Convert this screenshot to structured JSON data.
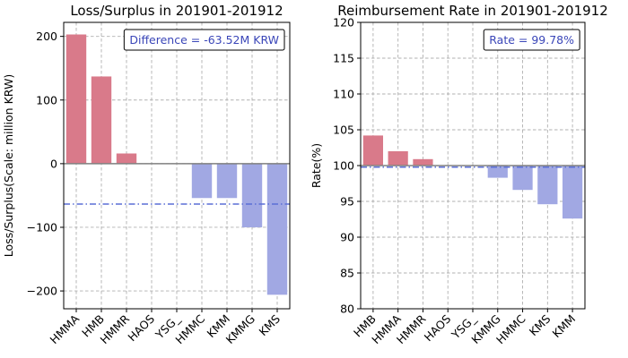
{
  "chart_data": [
    {
      "type": "bar",
      "title": "Loss/Surplus in 201901-201912",
      "ylabel": "Loss/Surplus(Scale: million KRW)",
      "xlabel": "",
      "categories": [
        "HMMA",
        "HMB",
        "HMMR",
        "HAOS",
        "YSG_",
        "HMMC",
        "KMM",
        "KMMG",
        "KMS"
      ],
      "values": [
        203,
        137,
        16,
        0,
        0,
        -54,
        -54,
        -100,
        -206
      ],
      "ylim": [
        -228,
        222
      ],
      "yticks": [
        -200,
        -100,
        0,
        100,
        200
      ],
      "ytick_labels": [
        "−200",
        "−100",
        "0",
        "100",
        "200"
      ],
      "zero_line": 0,
      "reference_line": {
        "value": -63.52,
        "style": "dash-dot"
      },
      "annotation": "Difference = -63.52M KRW",
      "annotation_position": "top-right",
      "grid": true
    },
    {
      "type": "bar",
      "title": "Reimbursement Rate in 201901-201912",
      "ylabel": "Rate(%)",
      "xlabel": "",
      "categories": [
        "HMB",
        "HMMA",
        "HMMR",
        "HAOS",
        "YSG_",
        "KMMG",
        "HMMC",
        "KMS",
        "KMM"
      ],
      "values": [
        104.2,
        102.0,
        100.9,
        100.0,
        100.0,
        98.3,
        96.6,
        94.6,
        92.6
      ],
      "ylim": [
        80,
        120
      ],
      "yticks": [
        80,
        85,
        90,
        95,
        100,
        105,
        110,
        115,
        120
      ],
      "ytick_labels": [
        "80",
        "85",
        "90",
        "95",
        "100",
        "105",
        "110",
        "115",
        "120"
      ],
      "zero_line": 100,
      "reference_line": {
        "value": 99.78,
        "style": "dash-dot"
      },
      "annotation": "Rate = 99.78%",
      "annotation_position": "top-right",
      "grid": true
    }
  ],
  "colors": {
    "positive_bar": "#d97a8a",
    "negative_bar": "#a1a8e3",
    "reference_line": "#5b6fd6",
    "baseline": "#808080"
  }
}
